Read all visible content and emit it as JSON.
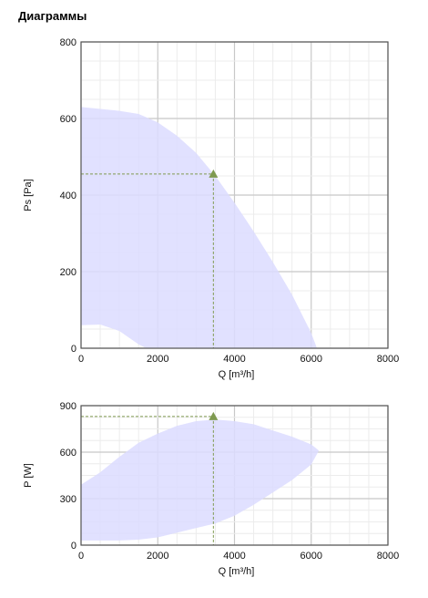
{
  "title": "Диаграммы",
  "chart_data": [
    {
      "type": "area",
      "xlabel": "Q [m³/h]",
      "ylabel": "Ps [Pa]",
      "xlim": [
        0,
        8000
      ],
      "ylim": [
        0,
        800
      ],
      "x_ticks": [
        "0",
        "2000",
        "4000",
        "6000",
        "8000"
      ],
      "y_ticks": [
        "0",
        "200",
        "400",
        "600",
        "800"
      ],
      "grid": true,
      "colors": {
        "area": "#dcdcff",
        "marker": "#7f9a50",
        "guide": "#7f9a50",
        "grid": "#d8d8d8"
      },
      "envelope_upper": [
        [
          0,
          630
        ],
        [
          500,
          625
        ],
        [
          1000,
          620
        ],
        [
          1500,
          612
        ],
        [
          2000,
          590
        ],
        [
          2500,
          555
        ],
        [
          3000,
          510
        ],
        [
          3500,
          450
        ],
        [
          4000,
          380
        ],
        [
          4500,
          305
        ],
        [
          5000,
          225
        ],
        [
          5500,
          140
        ],
        [
          6000,
          40
        ],
        [
          6150,
          0
        ]
      ],
      "envelope_lower": [
        [
          0,
          60
        ],
        [
          500,
          62
        ],
        [
          1000,
          45
        ],
        [
          1500,
          10
        ],
        [
          1700,
          0
        ]
      ],
      "operating_point": {
        "x": 3450,
        "y": 455
      }
    },
    {
      "type": "area",
      "xlabel": "Q [m³/h]",
      "ylabel": "P [W]",
      "xlim": [
        0,
        8000
      ],
      "ylim": [
        0,
        900
      ],
      "x_ticks": [
        "0",
        "2000",
        "4000",
        "6000",
        "8000"
      ],
      "y_ticks": [
        "0",
        "300",
        "600",
        "900"
      ],
      "grid": true,
      "colors": {
        "area": "#dcdcff",
        "marker": "#7f9a50",
        "guide": "#7f9a50",
        "grid": "#d8d8d8"
      },
      "envelope_upper": [
        [
          0,
          390
        ],
        [
          500,
          470
        ],
        [
          1000,
          570
        ],
        [
          1500,
          660
        ],
        [
          2000,
          720
        ],
        [
          2500,
          770
        ],
        [
          3000,
          800
        ],
        [
          3500,
          810
        ],
        [
          4000,
          800
        ],
        [
          4500,
          780
        ],
        [
          5000,
          740
        ],
        [
          5500,
          700
        ],
        [
          6000,
          650
        ],
        [
          6200,
          610
        ]
      ],
      "envelope_lower": [
        [
          0,
          30
        ],
        [
          500,
          30
        ],
        [
          1000,
          30
        ],
        [
          1500,
          35
        ],
        [
          2000,
          50
        ],
        [
          2500,
          80
        ],
        [
          3000,
          110
        ],
        [
          3500,
          140
        ],
        [
          4000,
          190
        ],
        [
          4500,
          260
        ],
        [
          5000,
          340
        ],
        [
          5500,
          420
        ],
        [
          6000,
          520
        ],
        [
          6200,
          610
        ]
      ],
      "operating_point": {
        "x": 3450,
        "y": 830
      }
    }
  ]
}
